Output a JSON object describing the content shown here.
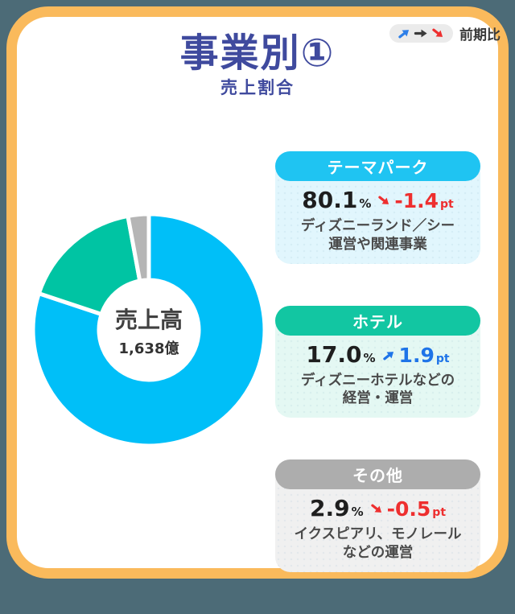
{
  "frame": {
    "border_color": "#FABA5C",
    "outside_color": "#4C6B77",
    "background": "#FFFFFF"
  },
  "header": {
    "title": "事業別①",
    "subtitle": "売上割合",
    "title_color": "#3F4A9E",
    "legend": {
      "label": "前期比",
      "up_color": "#2E7FE8",
      "neutral_color": "#3A3A3A",
      "down_color": "#EE2F2F",
      "pill_bg": "#EBEBEB"
    }
  },
  "chart_data": {
    "type": "pie",
    "title": "売上割合",
    "center_label": "売上高",
    "center_value": "1,638億",
    "donut": true,
    "start_angle_deg": 0,
    "direction": "clockwise",
    "segments": [
      {
        "name": "テーマパーク",
        "value_pct": 80.1,
        "color": "#00BFF8"
      },
      {
        "name": "ホテル",
        "value_pct": 17.0,
        "color": "#00C4A3"
      },
      {
        "name": "その他",
        "value_pct": 2.9,
        "color": "#B5B5B5"
      }
    ]
  },
  "cards": [
    {
      "title": "テーマパーク",
      "pill_color": "#1FC4F2",
      "bg_color": "#E1F6FD",
      "value": "80.1",
      "value_unit": "%",
      "trend": "down",
      "change": "-1.4",
      "change_unit": "pt",
      "change_color": "#EE2F2F",
      "desc": [
        "ディズニーランド／シー",
        "運営や関連事業"
      ]
    },
    {
      "title": "ホテル",
      "pill_color": "#12C6A2",
      "bg_color": "#E4F8F3",
      "value": "17.0",
      "value_unit": "%",
      "trend": "up",
      "change": "1.9",
      "change_unit": "pt",
      "change_color": "#1E74E8",
      "desc": [
        "ディズニーホテルなどの",
        "経営・運営"
      ]
    },
    {
      "title": "その他",
      "pill_color": "#ADADAD",
      "bg_color": "#F0F0F0",
      "value": "2.9",
      "value_unit": "%",
      "trend": "down",
      "change": "-0.5",
      "change_unit": "pt",
      "change_color": "#EE2F2F",
      "desc": [
        "イクスピアリ、モノレール",
        "などの運営"
      ]
    }
  ]
}
